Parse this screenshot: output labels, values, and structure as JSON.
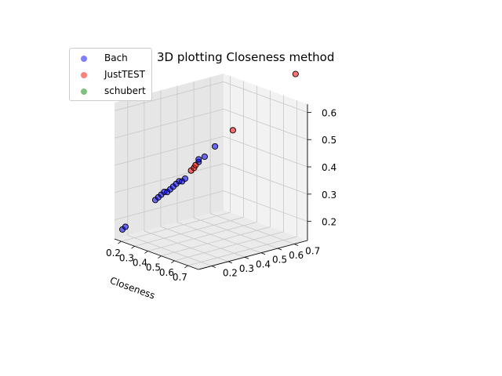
{
  "chart_data": {
    "type": "scatter",
    "title": "3D plotting Closeness method",
    "xlabel": "Closeness",
    "ylabel": "",
    "zlabel": "",
    "xlim": [
      0.15,
      0.78
    ],
    "ylim": [
      0.12,
      0.78
    ],
    "zlim": [
      0.13,
      0.63
    ],
    "x_ticks": [
      "0.2",
      "0.3",
      "0.4",
      "0.5",
      "0.6",
      "0.7"
    ],
    "y_ticks": [
      "0.2",
      "0.3",
      "0.4",
      "0.5",
      "0.6",
      "0.7"
    ],
    "z_ticks": [
      "0.2",
      "0.3",
      "0.4",
      "0.5",
      "0.6"
    ],
    "legend_position": "top-left",
    "grid": true,
    "series": [
      {
        "name": "Bach",
        "color": "#0000ff",
        "points": [
          [
            0.16,
            0.16,
            0.16
          ],
          [
            0.17,
            0.17,
            0.17
          ],
          [
            0.27,
            0.27,
            0.27
          ],
          [
            0.28,
            0.28,
            0.28
          ],
          [
            0.29,
            0.29,
            0.29
          ],
          [
            0.3,
            0.3,
            0.3
          ],
          [
            0.31,
            0.31,
            0.3
          ],
          [
            0.32,
            0.32,
            0.31
          ],
          [
            0.33,
            0.33,
            0.32
          ],
          [
            0.34,
            0.34,
            0.33
          ],
          [
            0.35,
            0.35,
            0.34
          ],
          [
            0.36,
            0.36,
            0.34
          ],
          [
            0.37,
            0.37,
            0.35
          ],
          [
            0.41,
            0.42,
            0.41
          ],
          [
            0.41,
            0.42,
            0.42
          ],
          [
            0.43,
            0.44,
            0.43
          ],
          [
            0.47,
            0.47,
            0.47
          ]
        ]
      },
      {
        "name": "JustTEST",
        "color": "#ff0000",
        "points": [
          [
            0.39,
            0.39,
            0.38
          ],
          [
            0.4,
            0.4,
            0.39
          ],
          [
            0.405,
            0.405,
            0.4
          ],
          [
            0.53,
            0.53,
            0.53
          ],
          [
            0.74,
            0.74,
            0.74
          ]
        ]
      },
      {
        "name": "schubert",
        "color": "#008000",
        "points": []
      }
    ]
  }
}
